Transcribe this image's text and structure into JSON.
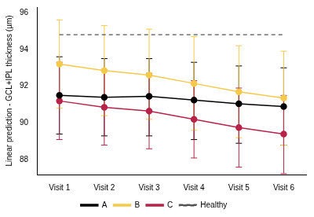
{
  "chart_data": {
    "type": "line",
    "y_label": "Linear prediction - GCL+IPL thickness (µm)",
    "categories": [
      "Visit 1",
      "Visit 2",
      "Visit 3",
      "Visit 4",
      "Visit 5",
      "Visit 6"
    ],
    "series": [
      {
        "name": "A",
        "color": "#000000",
        "marker": "circle",
        "line_style": "solid",
        "values": [
          91.5,
          91.4,
          91.45,
          91.25,
          91.05,
          90.9
        ],
        "lower": [
          89.4,
          89.3,
          89.3,
          89.1,
          88.9,
          88.8
        ],
        "upper": [
          93.6,
          93.5,
          93.5,
          93.3,
          93.1,
          93.0
        ]
      },
      {
        "name": "B",
        "color": "#f5c94a",
        "marker": "circle",
        "line_style": "solid",
        "values": [
          93.2,
          92.85,
          92.6,
          92.15,
          91.7,
          91.35
        ],
        "lower": [
          90.8,
          90.4,
          90.2,
          89.6,
          89.2,
          88.8
        ],
        "upper": [
          95.6,
          95.3,
          95.1,
          94.7,
          94.2,
          93.9
        ]
      },
      {
        "name": "C",
        "color": "#b8234a",
        "marker": "circle",
        "line_style": "solid",
        "values": [
          91.2,
          90.85,
          90.65,
          90.2,
          89.75,
          89.4
        ],
        "lower": [
          89.1,
          88.8,
          88.6,
          88.1,
          87.6,
          87.25
        ],
        "upper": [
          93.3,
          92.9,
          92.7,
          92.3,
          91.9,
          91.5
        ]
      },
      {
        "name": "Healthy",
        "color": "#555555",
        "marker": "none",
        "line_style": "dashed",
        "values": [
          94.8,
          94.8,
          94.8,
          94.8,
          94.8,
          94.8
        ]
      }
    ],
    "ylim": [
      87.2,
      96.3
    ],
    "yticks": [
      88,
      90,
      92,
      94,
      96
    ],
    "grid": false,
    "legend": "bottom"
  }
}
